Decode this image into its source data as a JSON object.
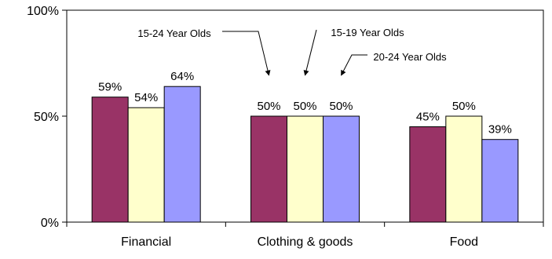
{
  "chart_data": {
    "type": "bar",
    "categories": [
      "Financial",
      "Clothing & goods",
      "Food"
    ],
    "series": [
      {
        "name": "15-24 Year Olds",
        "color": "#993366",
        "values": [
          59,
          50,
          45
        ]
      },
      {
        "name": "15-19 Year Olds",
        "color": "#ffffcc",
        "values": [
          54,
          50,
          50
        ]
      },
      {
        "name": "20-24 Year Olds",
        "color": "#9999ff",
        "values": [
          64,
          50,
          39
        ]
      }
    ],
    "data_labels": [
      [
        "59%",
        "50%",
        "45%"
      ],
      [
        "54%",
        "50%",
        "50%"
      ],
      [
        "64%",
        "50%",
        "39%"
      ]
    ],
    "y_ticks": [
      {
        "value": 0,
        "label": "0%"
      },
      {
        "value": 50,
        "label": "50%"
      },
      {
        "value": 100,
        "label": "100%"
      }
    ],
    "ylim": [
      0,
      100
    ],
    "grid": false,
    "legend": "none",
    "annotations": [
      {
        "text": "15-24 Year Olds",
        "series": 0,
        "category": 1
      },
      {
        "text": "15-19 Year Olds",
        "series": 1,
        "category": 1
      },
      {
        "text": "20-24 Year Olds",
        "series": 2,
        "category": 1
      }
    ]
  }
}
